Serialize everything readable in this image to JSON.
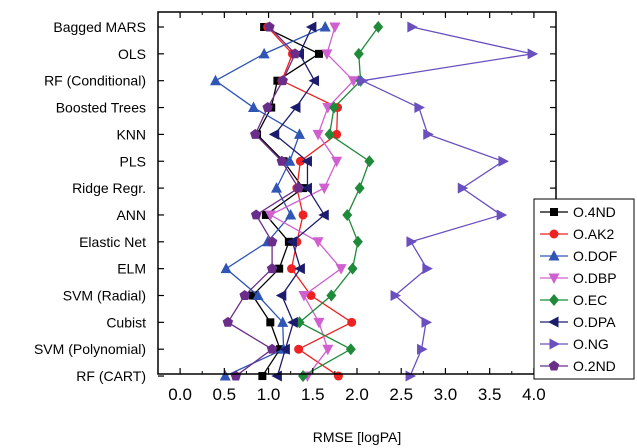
{
  "chart_data": {
    "type": "line",
    "orientation": "horizontal",
    "title": "",
    "xlabel": "RMSE [logPA]",
    "ylabel": "",
    "xlim": [
      -0.25,
      4.25
    ],
    "xticks": [
      0.0,
      0.5,
      1.0,
      1.5,
      2.0,
      2.5,
      3.0,
      3.5,
      4.0
    ],
    "xtick_labels": [
      "0.0",
      "0.5",
      "1.0",
      "1.5",
      "2.0",
      "2.5",
      "3.0",
      "3.5",
      "4.0"
    ],
    "grid": false,
    "legend_position": "right",
    "categories": [
      "Bagged MARS",
      "OLS",
      "RF (Conditional)",
      "Boosted Trees",
      "KNN",
      "PLS",
      "Ridge Regr.",
      "ANN",
      "Elastic Net",
      "ELM",
      "SVM (Radial)",
      "Cubist",
      "SVM (Polynomial)",
      "RF (CART)"
    ],
    "series": [
      {
        "name": "O.4ND",
        "color": "#000000",
        "marker": "square",
        "values": [
          0.95,
          1.57,
          1.1,
          1.03,
          0.87,
          1.17,
          1.39,
          0.97,
          1.23,
          1.12,
          0.82,
          1.02,
          1.13,
          0.93
        ]
      },
      {
        "name": "O.AK2",
        "color": "#ee2222",
        "marker": "circle",
        "values": [
          0.99,
          1.27,
          1.15,
          1.78,
          1.77,
          1.36,
          1.32,
          1.39,
          1.32,
          1.26,
          1.48,
          1.94,
          1.34,
          1.79
        ]
      },
      {
        "name": "O.DOF",
        "color": "#2f55b5",
        "marker": "triangle-up",
        "values": [
          1.64,
          0.95,
          0.4,
          0.83,
          1.35,
          1.24,
          1.09,
          1.25,
          0.99,
          0.52,
          0.88,
          1.16,
          1.17,
          0.51
        ]
      },
      {
        "name": "O.DBP",
        "color": "#d060d0",
        "marker": "triangle-down",
        "values": [
          1.75,
          1.66,
          1.96,
          1.67,
          1.56,
          1.77,
          1.63,
          1.02,
          1.56,
          1.82,
          1.4,
          1.57,
          1.67,
          1.44
        ]
      },
      {
        "name": "O.EC",
        "color": "#1f8a3a",
        "marker": "diamond",
        "values": [
          2.24,
          2.02,
          2.04,
          1.74,
          1.69,
          2.14,
          2.03,
          1.89,
          2.01,
          1.95,
          1.71,
          1.35,
          1.93,
          1.39
        ]
      },
      {
        "name": "O.DPA",
        "color": "#1c1c6e",
        "marker": "triangle-left",
        "values": [
          1.49,
          1.35,
          1.52,
          1.31,
          1.07,
          1.44,
          1.44,
          1.63,
          1.27,
          1.36,
          1.15,
          1.28,
          1.19,
          1.1
        ]
      },
      {
        "name": "O.NG",
        "color": "#6a4fbf",
        "marker": "triangle-right",
        "values": [
          2.62,
          3.98,
          2.06,
          2.7,
          2.8,
          3.65,
          3.19,
          3.63,
          2.61,
          2.79,
          2.43,
          2.78,
          2.73,
          2.6
        ]
      },
      {
        "name": "O.2ND",
        "color": "#6a2d8a",
        "marker": "pentagon",
        "values": [
          1.01,
          1.3,
          1.16,
          0.99,
          0.85,
          1.15,
          1.34,
          0.86,
          1.04,
          1.04,
          0.73,
          0.54,
          1.04,
          0.63
        ]
      }
    ]
  }
}
